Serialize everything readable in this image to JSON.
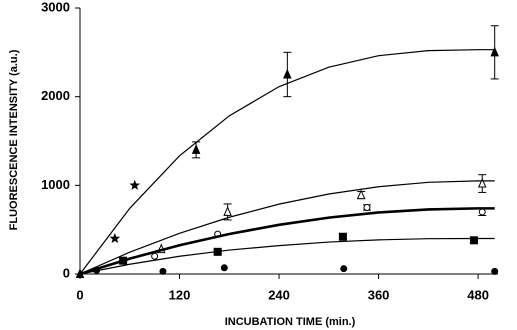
{
  "chart_data": {
    "type": "scatter",
    "x_label": "INCUBATION TIME (min.)",
    "y_label": "FLUORESCENCE INTENSITY (a.u.)",
    "xlim": [
      0,
      504
    ],
    "ylim": [
      0,
      3000
    ],
    "xticks": [
      0,
      120,
      240,
      360,
      480
    ],
    "yticks": [
      0,
      1000,
      2000,
      3000
    ],
    "color": "#000000",
    "series": [
      {
        "style": "points",
        "marker": "triangle",
        "x": [
          0,
          140,
          250,
          500
        ],
        "values": [
          0,
          1400,
          2250,
          2500
        ],
        "errors": [
          null,
          90,
          250,
          300
        ]
      },
      {
        "style": "points",
        "marker": "star",
        "x": [
          42,
          66
        ],
        "values": [
          400,
          1000
        ],
        "errors": [
          null,
          null
        ]
      },
      {
        "style": "points",
        "marker": "triangle-open",
        "x": [
          98,
          178,
          339,
          485
        ],
        "values": [
          280,
          700,
          890,
          1020
        ],
        "errors": [
          null,
          90,
          40,
          100
        ]
      },
      {
        "style": "points",
        "marker": "circle-open",
        "x": [
          90,
          166,
          346,
          485
        ],
        "values": [
          200,
          450,
          750,
          700
        ],
        "errors": [
          null,
          null,
          30,
          40
        ]
      },
      {
        "style": "points",
        "marker": "square",
        "x": [
          52,
          166,
          317,
          475
        ],
        "values": [
          150,
          250,
          420,
          380
        ],
        "errors": [
          null,
          20,
          30,
          30
        ]
      },
      {
        "style": "points",
        "marker": "circle",
        "x": [
          20,
          100,
          174,
          318,
          500
        ],
        "values": [
          40,
          30,
          70,
          60,
          30
        ],
        "errors": [
          null,
          null,
          null,
          null,
          null
        ]
      },
      {
        "style": "line",
        "width": 1.2,
        "x": [
          0,
          60,
          120,
          180,
          240,
          300,
          360,
          420,
          480,
          500
        ],
        "values": [
          0,
          741,
          1333,
          1784,
          2113,
          2333,
          2462,
          2519,
          2530,
          2530
        ]
      },
      {
        "style": "line",
        "width": 1.2,
        "x": [
          0,
          60,
          120,
          180,
          240,
          300,
          360,
          420,
          480,
          500
        ],
        "values": [
          0,
          246,
          459,
          640,
          788,
          902,
          984,
          1034,
          1050,
          1050
        ]
      },
      {
        "style": "line",
        "width": 2.6,
        "x": [
          0,
          60,
          120,
          180,
          240,
          300,
          360,
          420,
          480,
          500
        ],
        "values": [
          0,
          173,
          324,
          451,
          555,
          636,
          694,
          728,
          740,
          740
        ]
      },
      {
        "style": "line",
        "width": 1.2,
        "x": [
          0,
          60,
          120,
          180,
          240,
          300,
          360,
          420,
          480,
          500
        ],
        "values": [
          0,
          110,
          200,
          270,
          320,
          360,
          385,
          398,
          400,
          400
        ]
      }
    ]
  }
}
